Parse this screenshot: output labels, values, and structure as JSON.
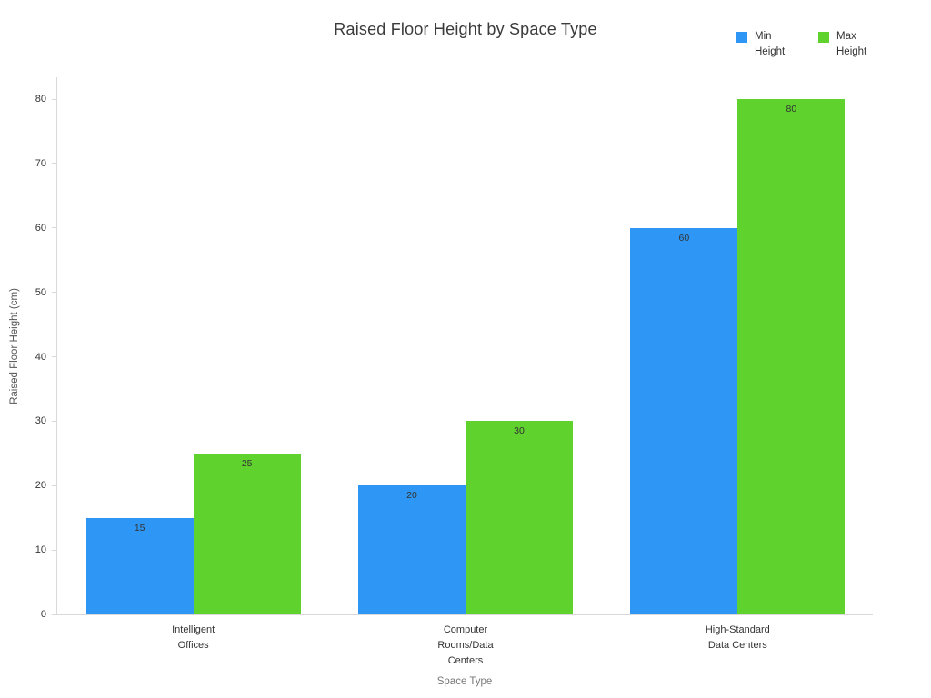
{
  "chart": {
    "background": "#ffffff"
  },
  "legend": {
    "items": [
      {
        "label": "Min Height",
        "color": "#2E96F5"
      },
      {
        "label": "Max Height",
        "color": "#5FD22E"
      }
    ]
  },
  "chart_data": {
    "type": "bar",
    "title": "Raised Floor Height by Space Type",
    "xlabel": "Space Type",
    "ylabel": "Raised Floor Height (cm)",
    "categories": [
      "Intelligent Offices",
      "Computer Rooms/Data Centers",
      "High-Standard Data Centers"
    ],
    "x_tick_labels": [
      "Intelligent\nOffices",
      "Computer\nRooms/Data\nCenters",
      "High-Standard\nData Centers"
    ],
    "series": [
      {
        "name": "Min Height",
        "color": "#2E96F5",
        "values": [
          15,
          20,
          60
        ]
      },
      {
        "name": "Max Height",
        "color": "#5FD22E",
        "values": [
          25,
          30,
          80
        ]
      }
    ],
    "bar_value_labels": [
      [
        15,
        20,
        60
      ],
      [
        25,
        30,
        80
      ]
    ],
    "ylim": [
      0,
      80
    ],
    "ytick_step": 10,
    "yticks": [
      0,
      10,
      20,
      30,
      40,
      50,
      60,
      70,
      80
    ],
    "grid": false,
    "legend_position": "top-right"
  }
}
